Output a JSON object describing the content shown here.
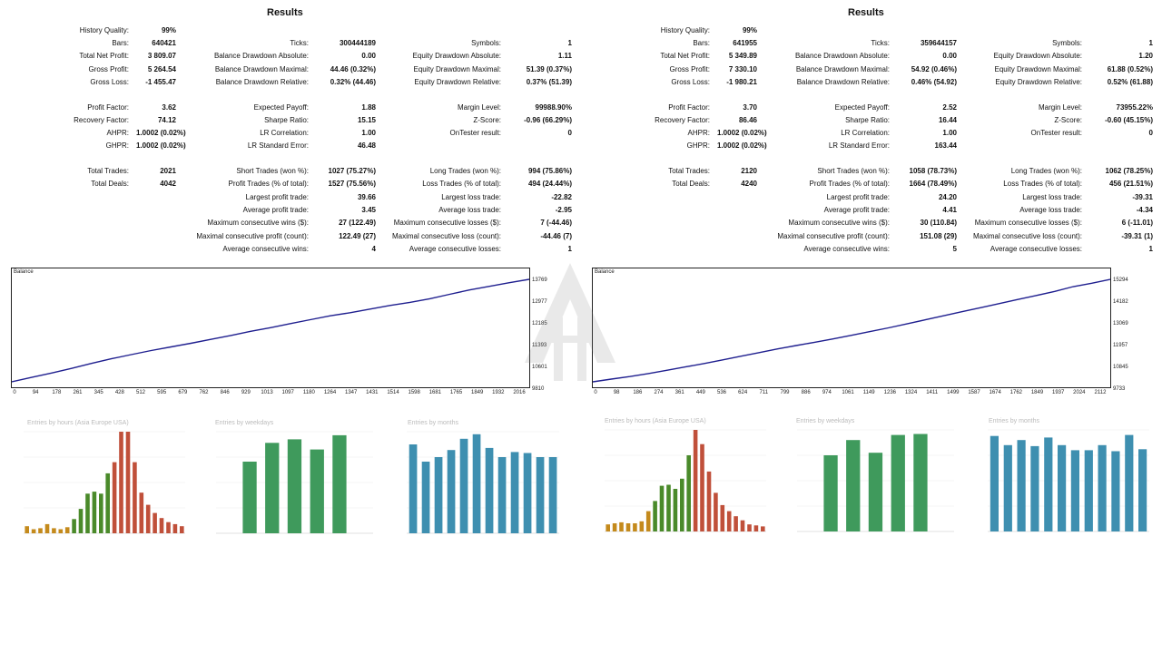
{
  "reports": [
    {
      "title": "Results",
      "col1": [
        {
          "label": "History Quality:",
          "value": "99%"
        },
        {
          "label": "Bars:",
          "value": "640421"
        },
        {
          "label": "Total Net Profit:",
          "value": "3 809.07"
        },
        {
          "label": "Gross Profit:",
          "value": "5 264.54"
        },
        {
          "label": "Gross Loss:",
          "value": "-1 455.47"
        },
        {
          "label": "Profit Factor:",
          "value": "3.62"
        },
        {
          "label": "Recovery Factor:",
          "value": "74.12"
        },
        {
          "label": "AHPR:",
          "value": "1.0002 (0.02%)"
        },
        {
          "label": "GHPR:",
          "value": "1.0002 (0.02%)"
        },
        {
          "label": "Total Trades:",
          "value": "2021"
        },
        {
          "label": "Total Deals:",
          "value": "4042"
        }
      ],
      "col2": [
        {
          "label": "Ticks:",
          "value": "300444189"
        },
        {
          "label": "Balance Drawdown Absolute:",
          "value": "0.00"
        },
        {
          "label": "Balance Drawdown Maximal:",
          "value": "44.46 (0.32%)"
        },
        {
          "label": "Balance Drawdown Relative:",
          "value": "0.32% (44.46)"
        },
        {
          "label": "Expected Payoff:",
          "value": "1.88"
        },
        {
          "label": "Sharpe Ratio:",
          "value": "15.15"
        },
        {
          "label": "LR Correlation:",
          "value": "1.00"
        },
        {
          "label": "LR Standard Error:",
          "value": "46.48"
        },
        {
          "label": "Short Trades (won %):",
          "value": "1027 (75.27%)"
        },
        {
          "label": "Profit Trades (% of total):",
          "value": "1527 (75.56%)"
        },
        {
          "label": "Largest profit trade:",
          "value": "39.66"
        },
        {
          "label": "Average profit trade:",
          "value": "3.45"
        },
        {
          "label": "Maximum consecutive wins ($):",
          "value": "27 (122.49)"
        },
        {
          "label": "Maximal consecutive profit (count):",
          "value": "122.49 (27)"
        },
        {
          "label": "Average consecutive wins:",
          "value": "4"
        }
      ],
      "col3": [
        {
          "label": "Symbols:",
          "value": "1"
        },
        {
          "label": "Equity Drawdown Absolute:",
          "value": "1.11"
        },
        {
          "label": "Equity Drawdown Maximal:",
          "value": "51.39 (0.37%)"
        },
        {
          "label": "Equity Drawdown Relative:",
          "value": "0.37% (51.39)"
        },
        {
          "label": "Margin Level:",
          "value": "99988.90%"
        },
        {
          "label": "Z-Score:",
          "value": "-0.96 (66.29%)"
        },
        {
          "label": "OnTester result:",
          "value": "0"
        },
        {
          "label": "Long Trades (won %):",
          "value": "994 (75.86%)"
        },
        {
          "label": "Loss Trades (% of total):",
          "value": "494 (24.44%)"
        },
        {
          "label": "Largest loss trade:",
          "value": "-22.82"
        },
        {
          "label": "Average loss trade:",
          "value": "-2.95"
        },
        {
          "label": "Maximum consecutive losses ($):",
          "value": "7 (-44.46)"
        },
        {
          "label": "Maximal consecutive loss (count):",
          "value": "-44.46 (7)"
        },
        {
          "label": "Average consecutive losses:",
          "value": "1"
        }
      ],
      "balance": {
        "title": "Balance",
        "yticks": [
          "13769",
          "12977",
          "12185",
          "11393",
          "10601",
          "9810"
        ],
        "xticks": [
          "0",
          "94",
          "178",
          "261",
          "345",
          "428",
          "512",
          "595",
          "679",
          "762",
          "846",
          "929",
          "1013",
          "1097",
          "1180",
          "1264",
          "1347",
          "1431",
          "1514",
          "1598",
          "1681",
          "1765",
          "1849",
          "1932",
          "2016"
        ],
        "line_color": "#1f1f8f"
      },
      "hours_title": "Entries by hours (Asia Europe USA)",
      "weekdays_title": "Entries by weekdays",
      "months_title": "Entries by months"
    },
    {
      "title": "Results",
      "col1": [
        {
          "label": "History Quality:",
          "value": "99%"
        },
        {
          "label": "Bars:",
          "value": "641955"
        },
        {
          "label": "Total Net Profit:",
          "value": "5 349.89"
        },
        {
          "label": "Gross Profit:",
          "value": "7 330.10"
        },
        {
          "label": "Gross Loss:",
          "value": "-1 980.21"
        },
        {
          "label": "Profit Factor:",
          "value": "3.70"
        },
        {
          "label": "Recovery Factor:",
          "value": "86.46"
        },
        {
          "label": "AHPR:",
          "value": "1.0002 (0.02%)"
        },
        {
          "label": "GHPR:",
          "value": "1.0002 (0.02%)"
        },
        {
          "label": "Total Trades:",
          "value": "2120"
        },
        {
          "label": "Total Deals:",
          "value": "4240"
        }
      ],
      "col2": [
        {
          "label": "Ticks:",
          "value": "359644157"
        },
        {
          "label": "Balance Drawdown Absolute:",
          "value": "0.00"
        },
        {
          "label": "Balance Drawdown Maximal:",
          "value": "54.92 (0.46%)"
        },
        {
          "label": "Balance Drawdown Relative:",
          "value": "0.46% (54.92)"
        },
        {
          "label": "Expected Payoff:",
          "value": "2.52"
        },
        {
          "label": "Sharpe Ratio:",
          "value": "16.44"
        },
        {
          "label": "LR Correlation:",
          "value": "1.00"
        },
        {
          "label": "LR Standard Error:",
          "value": "163.44"
        },
        {
          "label": "Short Trades (won %):",
          "value": "1058 (78.73%)"
        },
        {
          "label": "Profit Trades (% of total):",
          "value": "1664 (78.49%)"
        },
        {
          "label": "Largest profit trade:",
          "value": "24.20"
        },
        {
          "label": "Average profit trade:",
          "value": "4.41"
        },
        {
          "label": "Maximum consecutive wins ($):",
          "value": "30 (110.84)"
        },
        {
          "label": "Maximal consecutive profit (count):",
          "value": "151.08 (29)"
        },
        {
          "label": "Average consecutive wins:",
          "value": "5"
        }
      ],
      "col3": [
        {
          "label": "Symbols:",
          "value": "1"
        },
        {
          "label": "Equity Drawdown Absolute:",
          "value": "1.20"
        },
        {
          "label": "Equity Drawdown Maximal:",
          "value": "61.88 (0.52%)"
        },
        {
          "label": "Equity Drawdown Relative:",
          "value": "0.52% (61.88)"
        },
        {
          "label": "Margin Level:",
          "value": "73955.22%"
        },
        {
          "label": "Z-Score:",
          "value": "-0.60 (45.15%)"
        },
        {
          "label": "OnTester result:",
          "value": "0"
        },
        {
          "label": "Long Trades (won %):",
          "value": "1062 (78.25%)"
        },
        {
          "label": "Loss Trades (% of total):",
          "value": "456 (21.51%)"
        },
        {
          "label": "Largest loss trade:",
          "value": "-39.31"
        },
        {
          "label": "Average loss trade:",
          "value": "-4.34"
        },
        {
          "label": "Maximum consecutive losses ($):",
          "value": "6 (-11.01)"
        },
        {
          "label": "Maximal consecutive loss (count):",
          "value": "-39.31 (1)"
        },
        {
          "label": "Average consecutive losses:",
          "value": "1"
        }
      ],
      "balance": {
        "title": "Balance",
        "yticks": [
          "15294",
          "14182",
          "13069",
          "11957",
          "10845",
          "9733"
        ],
        "xticks": [
          "0",
          "98",
          "186",
          "274",
          "361",
          "449",
          "536",
          "624",
          "711",
          "799",
          "886",
          "974",
          "1061",
          "1149",
          "1236",
          "1324",
          "1411",
          "1499",
          "1587",
          "1674",
          "1762",
          "1849",
          "1937",
          "2024",
          "2112"
        ],
        "line_color": "#1f1f8f"
      },
      "hours_title": "Entries by hours (Asia Europe USA)",
      "weekdays_title": "Entries by weekdays",
      "months_title": "Entries by months"
    }
  ],
  "chart_data": [
    {
      "type": "line",
      "title": "Balance",
      "x_end": 2016,
      "ylim": [
        9810,
        13769
      ],
      "series": [
        {
          "values": [
            9810,
            9980,
            10150,
            10330,
            10520,
            10700,
            10860,
            11020,
            11160,
            11300,
            11450,
            11600,
            11760,
            11900,
            12060,
            12210,
            12360,
            12480,
            12620,
            12760,
            12880,
            13020,
            13190,
            13360,
            13500,
            13640,
            13769
          ]
        }
      ]
    },
    {
      "type": "line",
      "title": "Balance",
      "x_end": 2112,
      "ylim": [
        9733,
        15294
      ],
      "series": [
        {
          "values": [
            9733,
            9880,
            10020,
            10180,
            10360,
            10540,
            10720,
            10920,
            11120,
            11320,
            11520,
            11700,
            11880,
            12060,
            12260,
            12460,
            12660,
            12880,
            13100,
            13320,
            13540,
            13760,
            13980,
            14200,
            14420,
            14640,
            14900,
            15080,
            15294
          ]
        }
      ]
    },
    {
      "type": "bar",
      "title": "Entries by hours (Asia Europe USA)",
      "ylim": [
        0,
        200
      ],
      "values": [
        14,
        8,
        10,
        18,
        10,
        8,
        12,
        28,
        48,
        78,
        82,
        78,
        118,
        140,
        200,
        200,
        140,
        80,
        56,
        40,
        30,
        22,
        18,
        14
      ]
    },
    {
      "type": "bar",
      "title": "Entries by weekdays",
      "ylim": [
        0,
        400
      ],
      "values": [
        0,
        282,
        356,
        370,
        330,
        386,
        0
      ]
    },
    {
      "type": "bar",
      "title": "Entries by months",
      "ylim": [
        0,
        200
      ],
      "values": [
        175,
        141,
        150,
        164,
        186,
        195,
        168,
        150,
        160,
        158,
        150,
        150
      ]
    },
    {
      "type": "bar",
      "title": "Entries by hours (Asia Europe USA)",
      "ylim": [
        0,
        200
      ],
      "values": [
        14,
        16,
        18,
        16,
        16,
        20,
        40,
        60,
        90,
        92,
        84,
        104,
        150,
        200,
        172,
        118,
        76,
        52,
        40,
        30,
        22,
        14,
        12,
        10
      ]
    },
    {
      "type": "bar",
      "title": "Entries by weekdays",
      "ylim": [
        0,
        400
      ],
      "values": [
        0,
        300,
        360,
        310,
        380,
        384,
        0
      ]
    },
    {
      "type": "bar",
      "title": "Entries by months",
      "ylim": [
        0,
        200
      ],
      "values": [
        188,
        170,
        180,
        168,
        185,
        170,
        160,
        160,
        170,
        158,
        190,
        162
      ]
    }
  ]
}
